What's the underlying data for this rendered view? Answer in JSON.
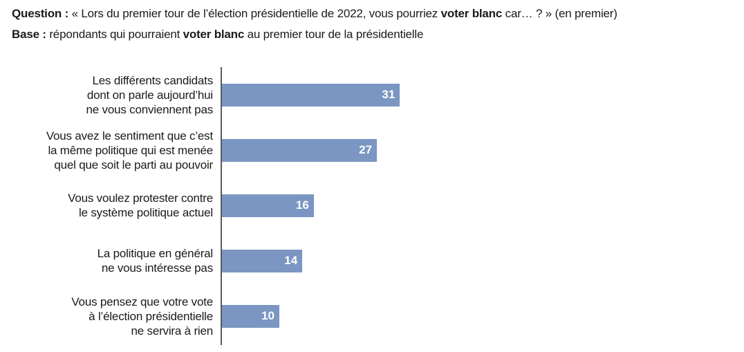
{
  "header": {
    "question_label": "Question :",
    "question_part1": " « Lors du premier tour de l’élection présidentielle de 2022, vous pourriez ",
    "question_bold": "voter blanc",
    "question_part2": " car… ? » (en premier)",
    "base_label": "Base :",
    "base_part1": " répondants qui pourraient ",
    "base_bold": "voter blanc",
    "base_part2": " au premier tour de la présidentielle"
  },
  "chart_data": {
    "type": "bar",
    "orientation": "horizontal",
    "title": "",
    "xlabel": "",
    "ylabel": "",
    "grid": false,
    "legend": false,
    "categories": [
      "Les différents candidats\ndont on parle aujourd’hui\nne vous conviennent pas",
      "Vous avez le sentiment que c’est\nla même politique qui est menée\nquel que soit le parti au pouvoir",
      "Vous voulez protester contre\nle système politique actuel",
      "La politique en général\nne vous intéresse pas",
      "Vous pensez que votre vote\nà l’élection présidentielle\nne servira à rien"
    ],
    "values": [
      31,
      27,
      16,
      14,
      10
    ],
    "bar_color": "#7b96c2",
    "value_label_color": "#ffffff",
    "axis_color": "#58595b"
  }
}
